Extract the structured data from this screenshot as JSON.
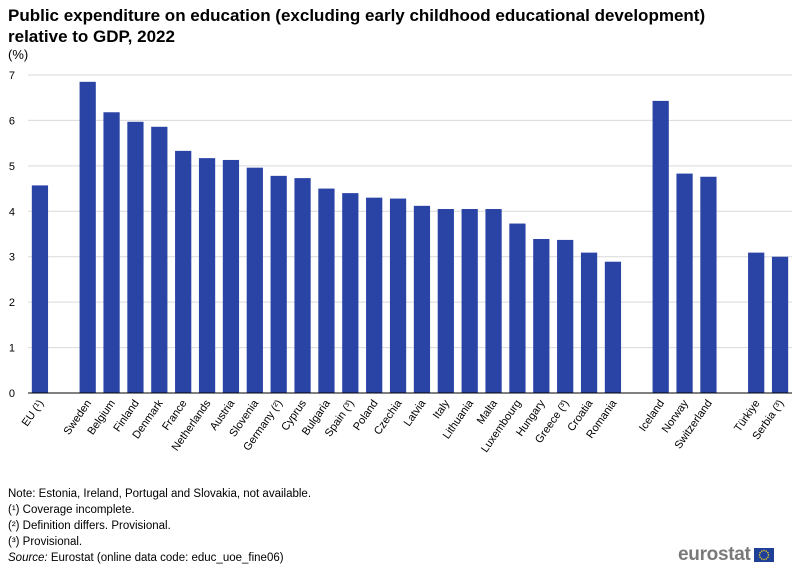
{
  "title": "Public expenditure on education (excluding early childhood educational development) relative to GDP, 2022",
  "colors": {
    "bar": "#2a44a6",
    "grid": "#d9d9d9",
    "axis": "#000000"
  },
  "chart_data": {
    "type": "bar",
    "unit_label": "(%)",
    "ylim": [
      0,
      7
    ],
    "yticks": [
      0,
      1,
      2,
      3,
      4,
      5,
      6,
      7
    ],
    "grid": true,
    "categories": [
      "EU (¹)",
      "",
      "Sweden",
      "Belgium",
      "Finland",
      "Denmark",
      "France",
      "Netherlands",
      "Austria",
      "Slovenia",
      "Germany (²)",
      "Cyprus",
      "Bulgaria",
      "Spain (³)",
      "Poland",
      "Czechia",
      "Latvia",
      "Italy",
      "Lithuania",
      "Malta",
      "Luxembourg",
      "Hungary",
      "Greece (³)",
      "Croatia",
      "Romania",
      "",
      "Iceland",
      "Norway",
      "Switzerland",
      "",
      "Türkiye",
      "Serbia (³)"
    ],
    "values": [
      4.57,
      null,
      6.85,
      6.18,
      5.97,
      5.86,
      5.33,
      5.17,
      5.13,
      4.96,
      4.78,
      4.73,
      4.5,
      4.4,
      4.3,
      4.28,
      4.12,
      4.05,
      4.05,
      4.05,
      3.73,
      3.39,
      3.37,
      3.09,
      2.89,
      null,
      6.43,
      4.83,
      4.76,
      null,
      3.09,
      3.0
    ]
  },
  "notes": {
    "note": "Note: Estonia, Ireland,  Portugal and Slovakia, not available.",
    "n1": "(¹) Coverage incomplete.",
    "n2": "(²) Definition differs. Provisional.",
    "n3": "(³) Provisional.",
    "source_label": "Source:",
    "source_text": " Eurostat (online data code: educ_uoe_fine06)"
  },
  "logo": {
    "text": "eurostat",
    "flag_icon": "eu-flag-icon"
  }
}
